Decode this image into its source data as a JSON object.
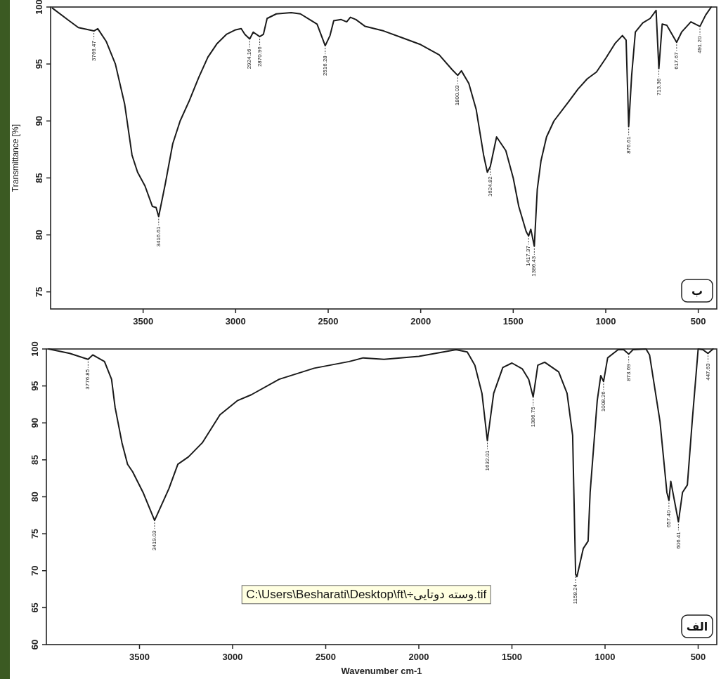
{
  "chart_data": [
    {
      "type": "line",
      "ylabel": "Transmittance [%]",
      "x": [
        3990,
        3900,
        3850,
        3766,
        3745,
        3700,
        3650,
        3600,
        3560,
        3530,
        3490,
        3450,
        3430,
        3416,
        3380,
        3340,
        3300,
        3250,
        3200,
        3150,
        3100,
        3050,
        3000,
        2970,
        2950,
        2924,
        2905,
        2870,
        2850,
        2830,
        2780,
        2700,
        2650,
        2600,
        2560,
        2516,
        2490,
        2470,
        2430,
        2400,
        2380,
        2350,
        2300,
        2200,
        2100,
        2000,
        1900,
        1830,
        1800,
        1780,
        1740,
        1700,
        1660,
        1640,
        1624,
        1590,
        1540,
        1500,
        1470,
        1430,
        1417,
        1405,
        1386,
        1370,
        1350,
        1320,
        1280,
        1200,
        1150,
        1100,
        1050,
        1000,
        950,
        910,
        890,
        876,
        860,
        840,
        800,
        760,
        728,
        713,
        695,
        670,
        617,
        590,
        540,
        491,
        460,
        430
      ],
      "series": [
        {
          "color": "#1a1a1a",
          "values": [
            99.9,
            98.8,
            98.2,
            97.9,
            98.1,
            97.0,
            95.0,
            91.5,
            87.0,
            85.5,
            84.3,
            82.5,
            82.4,
            81.6,
            84.5,
            88.0,
            90.0,
            91.8,
            93.8,
            95.6,
            96.8,
            97.6,
            98.0,
            98.1,
            97.6,
            97.2,
            97.8,
            97.4,
            97.6,
            99.0,
            99.4,
            99.5,
            99.4,
            98.9,
            98.5,
            96.6,
            97.5,
            98.8,
            98.9,
            98.7,
            99.1,
            98.9,
            98.3,
            97.9,
            97.3,
            96.7,
            95.8,
            94.5,
            94.0,
            94.4,
            93.3,
            91.0,
            87.0,
            85.5,
            86.0,
            88.6,
            87.4,
            85.0,
            82.5,
            80.3,
            79.9,
            80.5,
            79.0,
            84.0,
            86.5,
            88.6,
            90.0,
            91.7,
            92.8,
            93.7,
            94.3,
            95.5,
            96.8,
            97.5,
            97.1,
            89.5,
            94.0,
            97.8,
            98.6,
            99.0,
            99.7,
            94.6,
            98.5,
            98.4,
            96.9,
            97.8,
            98.7,
            98.3,
            99.3,
            100
          ]
        }
      ],
      "xlim": [
        4000,
        400
      ],
      "xticks": [
        3500,
        3000,
        2500,
        2000,
        1500,
        1000,
        500
      ],
      "ylim": [
        73.5,
        100
      ],
      "yticks": [
        75,
        80,
        85,
        90,
        95,
        100
      ],
      "annotations": [
        "ب",
        {
          "text": "3766.47",
          "x": 3766,
          "y": 97.9
        },
        {
          "text": "3416.61",
          "x": 3416,
          "y": 81.6
        },
        {
          "text": "2924.16",
          "x": 2924,
          "y": 97.2
        },
        {
          "text": "2870.96",
          "x": 2870,
          "y": 97.4
        },
        {
          "text": "2516.28",
          "x": 2516,
          "y": 96.6
        },
        {
          "text": "1800.03",
          "x": 1800,
          "y": 94.0
        },
        {
          "text": "1624.82",
          "x": 1624,
          "y": 86.0
        },
        {
          "text": "1417.37",
          "x": 1417,
          "y": 79.9
        },
        {
          "text": "1386.43",
          "x": 1386,
          "y": 79.0
        },
        {
          "text": "876.61",
          "x": 876,
          "y": 89.5
        },
        {
          "text": "713.36",
          "x": 713,
          "y": 94.6
        },
        {
          "text": "617.67",
          "x": 617,
          "y": 96.9
        },
        {
          "text": "491.20",
          "x": 491,
          "y": 98.3
        }
      ]
    },
    {
      "type": "line",
      "xlabel": "Wavenumber cm-1",
      "x": [
        3988,
        3875,
        3776,
        3751,
        3688,
        3650,
        3631,
        3594,
        3564,
        3537,
        3481,
        3419,
        3342,
        3294,
        3237,
        3163,
        3068,
        2975,
        2900,
        2750,
        2562,
        2374,
        2299,
        2187,
        2000,
        1800,
        1740,
        1699,
        1661,
        1632,
        1598,
        1549,
        1500,
        1444,
        1410,
        1386,
        1361,
        1324,
        1249,
        1204,
        1174,
        1158,
        1151,
        1117,
        1091,
        1080,
        1042,
        1023,
        1008,
        986,
        930,
        900,
        873,
        850,
        780,
        761,
        705,
        668,
        657,
        647,
        606,
        584,
        558,
        532,
        500,
        475,
        447,
        420
      ],
      "series": [
        {
          "color": "#1a1a1a",
          "values": [
            100,
            99.4,
            98.6,
            99.2,
            98.3,
            95.9,
            92.1,
            87.3,
            84.4,
            83.4,
            80.6,
            76.8,
            81.1,
            84.4,
            85.4,
            87.3,
            91.1,
            93.0,
            93.8,
            95.9,
            97.4,
            98.3,
            98.8,
            98.6,
            99.0,
            99.9,
            99.6,
            97.8,
            94.0,
            87.6,
            94.0,
            97.5,
            98.1,
            97.3,
            95.9,
            93.5,
            97.8,
            98.2,
            96.9,
            94.0,
            88.3,
            69.5,
            69.2,
            73.0,
            74.0,
            80.6,
            93.0,
            96.4,
            95.6,
            98.8,
            99.9,
            99.9,
            99.3,
            99.9,
            100,
            99.2,
            90.2,
            80.6,
            79.5,
            82.1,
            76.6,
            80.6,
            81.6,
            90.2,
            100,
            99.9,
            99.4,
            100
          ]
        }
      ],
      "xlim": [
        4000,
        400
      ],
      "xticks": [
        3500,
        3000,
        2500,
        2000,
        1500,
        1000,
        500
      ],
      "ylim": [
        60,
        100
      ],
      "yticks": [
        60,
        65,
        70,
        75,
        80,
        85,
        90,
        95,
        100
      ],
      "annotations": [
        "الف",
        "C:\\Users\\Besharati\\Desktop\\ft\\÷وسته دوتایی.tif",
        {
          "text": "3776.85",
          "x": 3776,
          "y": 98.6
        },
        {
          "text": "3419.03",
          "x": 3419,
          "y": 76.8
        },
        {
          "text": "1632.01",
          "x": 1632,
          "y": 87.6
        },
        {
          "text": "1386.75",
          "x": 1386,
          "y": 93.5
        },
        {
          "text": "1158.24",
          "x": 1158,
          "y": 69.5
        },
        {
          "text": "1008.26",
          "x": 1008,
          "y": 95.6
        },
        {
          "text": "873.69",
          "x": 873,
          "y": 99.3
        },
        {
          "text": "657.40",
          "x": 657,
          "y": 79.5
        },
        {
          "text": "606.41",
          "x": 606,
          "y": 76.6
        },
        {
          "text": "447.63",
          "x": 447,
          "y": 99.4
        }
      ]
    }
  ]
}
